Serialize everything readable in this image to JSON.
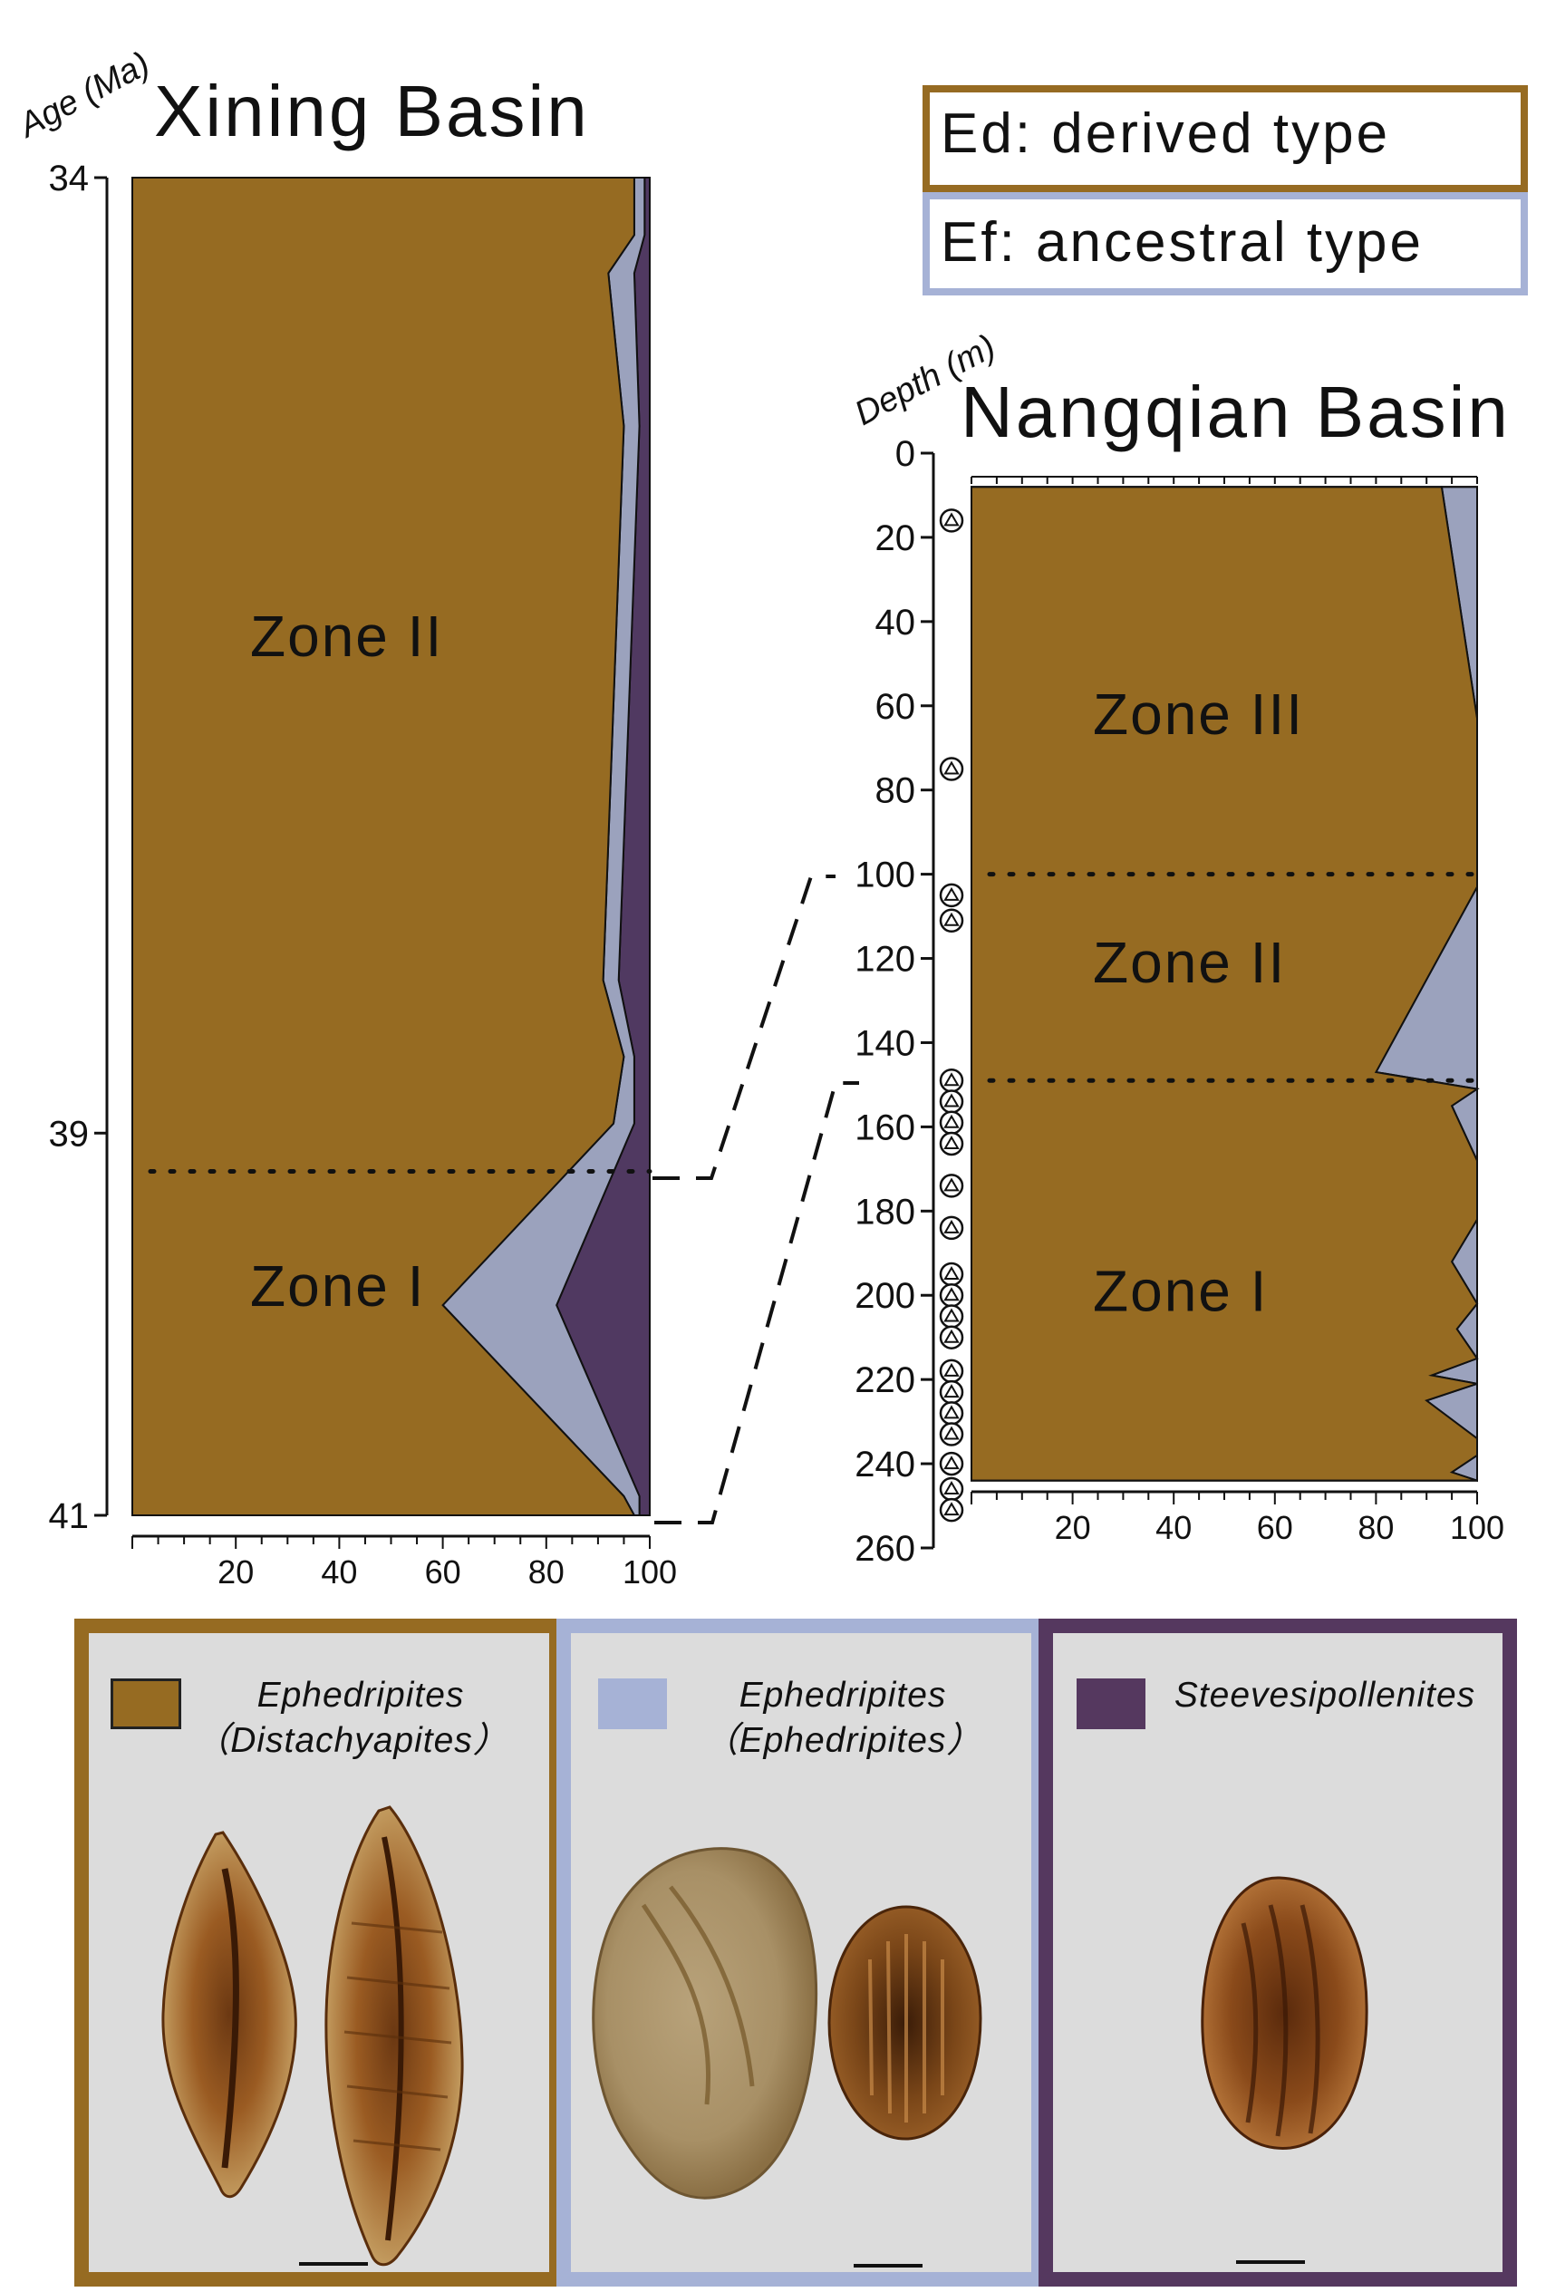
{
  "colors": {
    "derived": "#966b22",
    "ancestral": "#a6b2d6",
    "ancestral_area": "#9ba2bd",
    "steeve": "#55385f",
    "steeve_area": "#503961",
    "panel_bg": "#dcdcdc"
  },
  "legend_types": {
    "ed": "Ed: derived type",
    "ef": "Ef: ancestral type"
  },
  "chart_data": [
    {
      "type": "area",
      "title": "Xining Basin",
      "ylabel": "Age (Ma)",
      "yticks": [
        "34",
        "39",
        "41"
      ],
      "ylim": [
        34,
        41
      ],
      "xlim": [
        0,
        100
      ],
      "xticks": [
        "20",
        "40",
        "60",
        "80",
        "100"
      ],
      "y": [
        34,
        34.3,
        34.5,
        35.3,
        38.2,
        38.6,
        38.95,
        39.9,
        40.9,
        41
      ],
      "series": [
        {
          "values": [
            97,
            97,
            92,
            95,
            91,
            95,
            93,
            60,
            95,
            97
          ]
        },
        {
          "values": [
            2,
            2,
            5,
            3,
            3,
            2,
            4,
            22,
            3,
            1
          ]
        },
        {
          "values": [
            1,
            1,
            3,
            2,
            6,
            3,
            3,
            18,
            2,
            2
          ]
        }
      ],
      "zones": [
        {
          "label": "Zone II",
          "y": 36.4
        },
        {
          "label": "Zone I",
          "y": 39.8
        }
      ],
      "boundaries": [
        39.2
      ]
    },
    {
      "type": "area",
      "title": "Nangqian Basin",
      "ylabel": "Depth (m)",
      "yticks": [
        "0",
        "20",
        "40",
        "60",
        "80",
        "100",
        "120",
        "140",
        "160",
        "180",
        "200",
        "220",
        "240",
        "260"
      ],
      "ylim": [
        0,
        260
      ],
      "xlim": [
        0,
        100
      ],
      "xticks": [
        "20",
        "40",
        "60",
        "80",
        "100"
      ],
      "y": [
        8,
        63,
        103,
        147,
        151,
        155,
        168,
        182,
        192,
        202,
        208,
        215,
        219,
        221,
        225,
        234,
        238,
        242,
        244
      ],
      "series": [
        {
          "values": [
            93,
            100,
            100,
            80,
            100,
            95,
            100,
            100,
            95,
            100,
            96,
            100,
            91,
            100,
            90,
            100,
            100,
            95,
            100
          ]
        },
        {
          "values": [
            7,
            0,
            0,
            20,
            0,
            5,
            0,
            0,
            5,
            0,
            4,
            0,
            9,
            0,
            10,
            0,
            0,
            5,
            0
          ]
        }
      ],
      "zones": [
        {
          "label": "Zone III",
          "y": 62
        },
        {
          "label": "Zone II",
          "y": 121
        },
        {
          "label": "Zone I",
          "y": 199
        }
      ],
      "boundaries": [
        100,
        149
      ],
      "pollen_depths": [
        16,
        75,
        105,
        111,
        149,
        154,
        159,
        164,
        174,
        184,
        195,
        200,
        205,
        210,
        218,
        223,
        228,
        233,
        240,
        246,
        251
      ]
    }
  ],
  "legend_panels": [
    {
      "line1": "Ephedripites",
      "line2": "（Distachyapites）"
    },
    {
      "line1": "Ephedripites",
      "line2": "（Ephedripites）"
    },
    {
      "line1": "Steevesipollenites",
      "line2": ""
    }
  ]
}
